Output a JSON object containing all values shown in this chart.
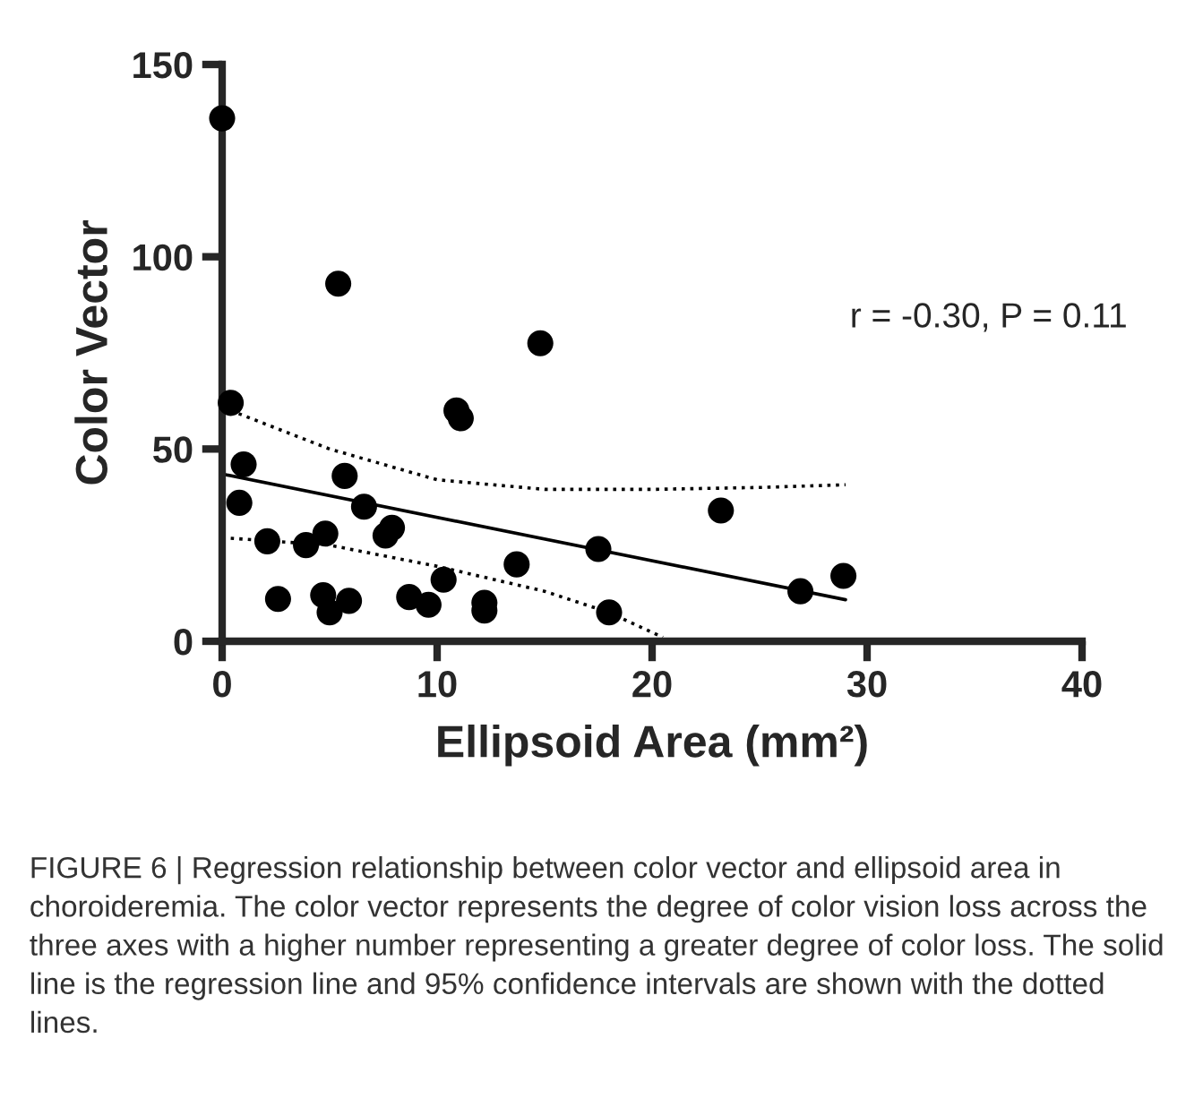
{
  "chart_data": {
    "type": "scatter",
    "xlabel": "Ellipsoid Area (mm²)",
    "ylabel": "Color Vector",
    "xlim": [
      0,
      40
    ],
    "xticks": [
      0,
      10,
      20,
      30,
      40
    ],
    "ylim": [
      0,
      150
    ],
    "yticks": [
      0,
      50,
      100,
      150
    ],
    "grid": false,
    "marker": "circle",
    "series": [
      {
        "color": "#000000",
        "x": [
          0,
          0.4,
          1.0,
          0.8,
          2.1,
          2.6,
          3.9,
          4.8,
          4.7,
          5.0,
          5.4,
          5.7,
          5.9,
          6.6,
          7.6,
          7.9,
          8.7,
          9.6,
          10.3,
          10.9,
          11.1,
          12.2,
          12.2,
          13.7,
          14.8,
          17.5,
          18.0,
          23.2,
          26.9,
          28.9
        ],
        "values": [
          136,
          62,
          46,
          36,
          26,
          11,
          25,
          28,
          12,
          7.5,
          93,
          43,
          10.5,
          35,
          27.5,
          29.5,
          11.5,
          9.5,
          16,
          60,
          58,
          10,
          8,
          20,
          77.5,
          24,
          7.5,
          34,
          13,
          17
        ]
      },
      {
        "type": "line",
        "line_style": "solid",
        "marker": "none",
        "color": "#000000",
        "x": [
          0,
          29
        ],
        "values": [
          43.5,
          10.8
        ]
      },
      {
        "type": "line",
        "line_style": "dotted",
        "marker": "none",
        "color": "#000000",
        "x": [
          0.4,
          5,
          10,
          15,
          20,
          25,
          29
        ],
        "values": [
          60,
          50,
          42,
          39.5,
          39.5,
          40,
          40.7
        ]
      },
      {
        "type": "line",
        "line_style": "dotted",
        "marker": "none",
        "color": "#000000",
        "x": [
          0.4,
          5,
          10,
          15,
          18,
          20.5
        ],
        "values": [
          26.8,
          25,
          19.5,
          13,
          7.5,
          1
        ]
      }
    ],
    "annotations": [
      "r = -0.30, P = 0.11",
      "FIGURE 6 | Regression relationship between color vector and ellipsoid area in choroideremia. The color vector represents the degree of color vision loss across the three axes with a higher number representing a greater degree of color loss. The solid line is the regression line and 95% confidence intervals are shown with the dotted lines."
    ]
  }
}
